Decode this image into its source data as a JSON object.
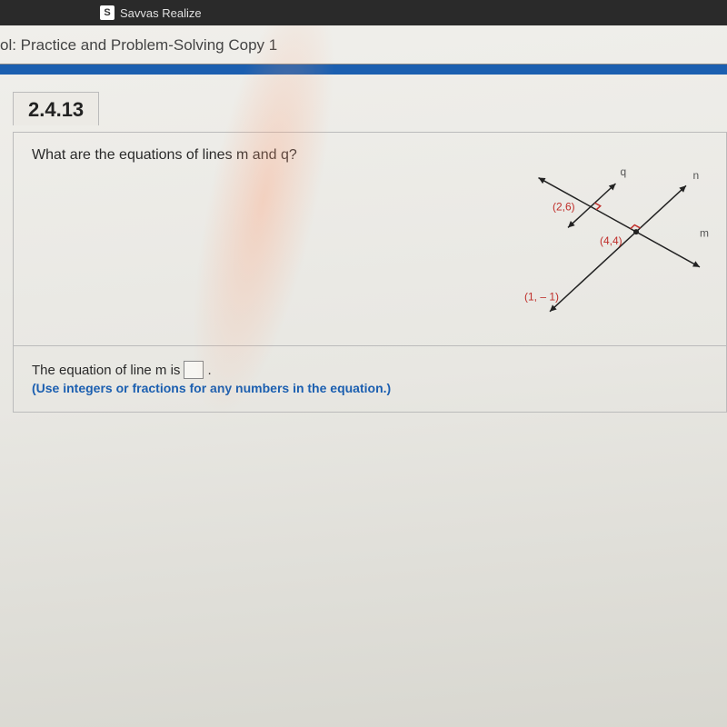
{
  "browser": {
    "tab_title": "Savvas Realize",
    "favicon_letter": "S"
  },
  "breadcrumb": "ol: Practice and Problem-Solving Copy 1",
  "header_bar_color": "#1b5fb0",
  "problem": {
    "number": "2.4.13",
    "question": "What are the equations of lines m and q?",
    "answer_prefix": "The equation of line m is",
    "answer_suffix": ".",
    "hint": "(Use integers or fractions for any numbers in the equation.)"
  },
  "diagram": {
    "type": "line-intersection",
    "bg": "transparent",
    "label_color": "#bf2e2a",
    "line_color": "#222222",
    "arrow_fill": "#222222",
    "perp_box_color": "#bf2e2a",
    "label_fontsize": 12,
    "axis_label_fontsize": 12,
    "points": {
      "p1": {
        "x": 2,
        "y": 6,
        "label": "(2,6)"
      },
      "p2": {
        "x": 4,
        "y": 4,
        "label": "(4,4)"
      },
      "p3": {
        "x": 1,
        "y": -1,
        "label": "(1, – 1)"
      }
    },
    "line_labels": {
      "q": "q",
      "n": "n",
      "m": "m"
    },
    "xrange": [
      -1,
      7
    ],
    "yrange": [
      -3,
      10
    ],
    "stroke_width": 1.5
  },
  "colors": {
    "page_bg_top": "#f0efeb",
    "page_bg_bottom": "#d8d7d0",
    "text": "#2a2a2a",
    "border": "#bbbbbb"
  }
}
